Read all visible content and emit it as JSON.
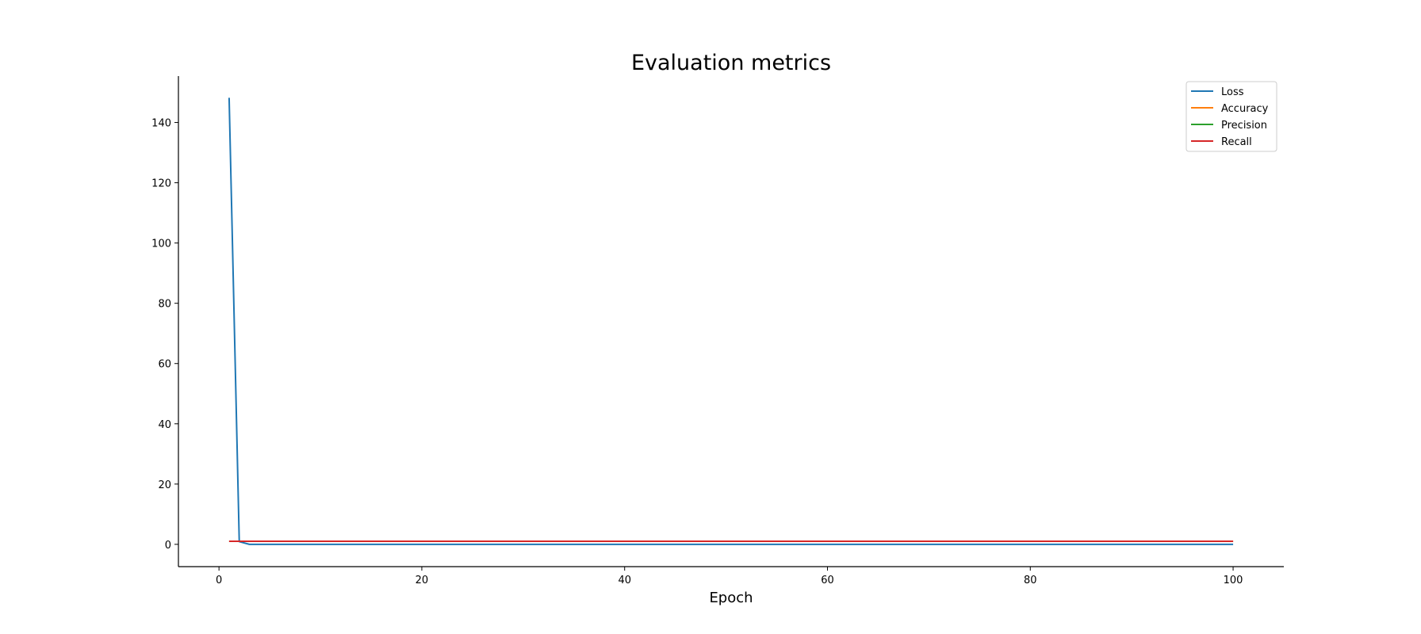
{
  "chart_data": {
    "type": "line",
    "title": "Evaluation metrics",
    "xlabel": "Epoch",
    "ylabel": "",
    "xlim": [
      -4.0,
      105.0
    ],
    "ylim": [
      -7.4,
      155.4
    ],
    "xticks": [
      0,
      20,
      40,
      60,
      80,
      100
    ],
    "yticks": [
      0,
      20,
      40,
      60,
      80,
      100,
      120,
      140
    ],
    "grid": false,
    "legend_position": "top-right",
    "series": [
      {
        "name": "Loss",
        "color": "#1f77b4",
        "x": [
          1,
          2,
          3,
          4,
          100
        ],
        "y": [
          148.2,
          0.9,
          0.0,
          0.0,
          0.0
        ]
      },
      {
        "name": "Accuracy",
        "color": "#ff7f0e",
        "x": [
          1,
          100
        ],
        "y": [
          1.0,
          1.0
        ]
      },
      {
        "name": "Precision",
        "color": "#2ca02c",
        "x": [
          1,
          100
        ],
        "y": [
          1.0,
          1.0
        ]
      },
      {
        "name": "Recall",
        "color": "#d62728",
        "x": [
          1,
          100
        ],
        "y": [
          1.0,
          1.0
        ]
      }
    ]
  }
}
